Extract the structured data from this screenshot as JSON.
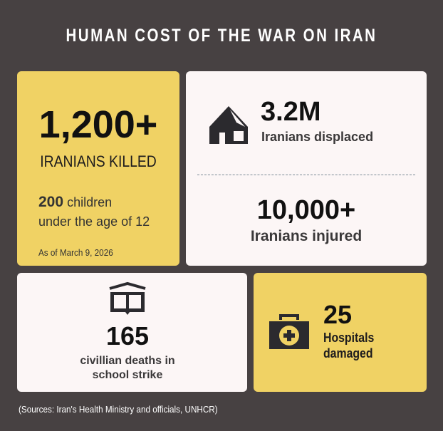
{
  "title": "HUMAN COST OF THE WAR ON IRAN",
  "killed": {
    "value": "1,200+",
    "label": "IRANIANS KILLED",
    "children_count": "200",
    "children_text": "children",
    "children_text2": "under the age of 12",
    "date": "As of March 9, 2026"
  },
  "displaced": {
    "value": "3.2M",
    "label": "Iranians displaced",
    "icon": "tent-icon"
  },
  "injured": {
    "value": "10,000+",
    "label": "Iranians injured"
  },
  "school": {
    "value": "165",
    "label1": "civillian deaths in",
    "label2": "school strike",
    "icon": "book-icon"
  },
  "hospitals": {
    "value": "25",
    "label1": "Hospitals",
    "label2": "damaged",
    "icon": "medical-kit-icon"
  },
  "sources": "(Sources: Iran's Health Ministry and officials, UNHCR)",
  "colors": {
    "background": "#474142",
    "yellow": "#f0d264",
    "white": "#fcf6f6",
    "dark": "#2b2a2e"
  }
}
